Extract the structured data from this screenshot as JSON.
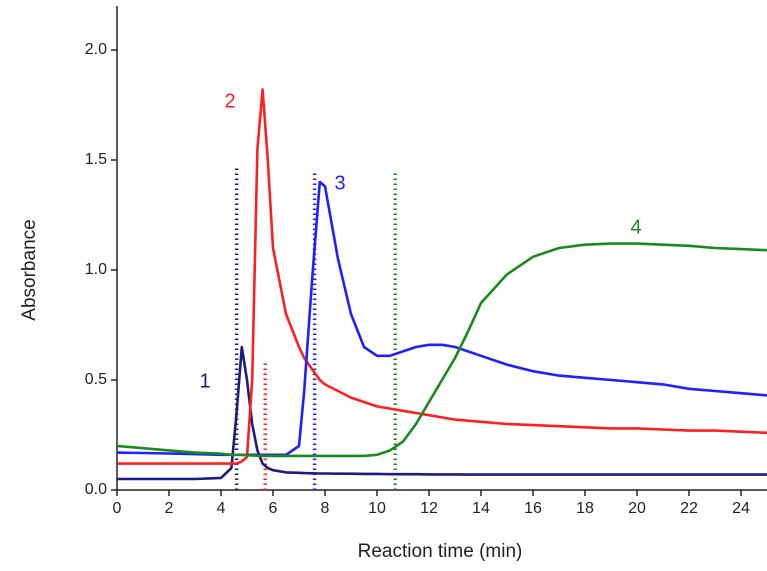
{
  "chart_data": {
    "type": "line",
    "xlabel": "Reaction time (min)",
    "ylabel": "Absorbance",
    "x": [
      0,
      1,
      2,
      3,
      4,
      4.4,
      4.6,
      4.8,
      5.0,
      5.2,
      5.4,
      5.6,
      5.8,
      6,
      6.5,
      7,
      7.2,
      7.5,
      7.8,
      8,
      8.5,
      9,
      9.5,
      10,
      10.5,
      11,
      11.5,
      12,
      12.5,
      13,
      13.5,
      14,
      15,
      16,
      17,
      18,
      19,
      20,
      21,
      22,
      23,
      24,
      25
    ],
    "series": [
      {
        "name": "1",
        "color": "#1c1c7e",
        "values": [
          0.05,
          0.05,
          0.05,
          0.05,
          0.055,
          0.1,
          0.35,
          0.65,
          0.5,
          0.3,
          0.18,
          0.12,
          0.1,
          0.09,
          0.08,
          0.078,
          0.077,
          0.076,
          0.075,
          0.075,
          0.074,
          0.074,
          0.073,
          0.073,
          0.072,
          0.072,
          0.072,
          0.071,
          0.071,
          0.071,
          0.07,
          0.07,
          0.07,
          0.07,
          0.07,
          0.07,
          0.07,
          0.07,
          0.07,
          0.07,
          0.07,
          0.07,
          0.07
        ]
      },
      {
        "name": "2",
        "color": "#ff1f1f",
        "values": [
          0.12,
          0.12,
          0.12,
          0.12,
          0.12,
          0.12,
          0.12,
          0.13,
          0.15,
          0.5,
          1.55,
          1.82,
          1.5,
          1.1,
          0.8,
          0.65,
          0.6,
          0.55,
          0.5,
          0.48,
          0.45,
          0.42,
          0.4,
          0.38,
          0.37,
          0.36,
          0.35,
          0.34,
          0.33,
          0.32,
          0.315,
          0.31,
          0.3,
          0.295,
          0.29,
          0.285,
          0.28,
          0.28,
          0.275,
          0.27,
          0.27,
          0.265,
          0.26
        ]
      },
      {
        "name": "3",
        "color": "#1f1fff",
        "values": [
          0.17,
          0.168,
          0.166,
          0.163,
          0.16,
          0.16,
          0.16,
          0.16,
          0.16,
          0.16,
          0.16,
          0.16,
          0.16,
          0.16,
          0.16,
          0.2,
          0.45,
          0.95,
          1.4,
          1.38,
          1.05,
          0.8,
          0.65,
          0.61,
          0.61,
          0.63,
          0.65,
          0.66,
          0.66,
          0.65,
          0.63,
          0.61,
          0.57,
          0.54,
          0.52,
          0.51,
          0.5,
          0.49,
          0.48,
          0.46,
          0.45,
          0.44,
          0.43
        ]
      },
      {
        "name": "4",
        "color": "#1a8a1a",
        "values": [
          0.2,
          0.19,
          0.18,
          0.17,
          0.165,
          0.16,
          0.16,
          0.16,
          0.158,
          0.157,
          0.156,
          0.155,
          0.155,
          0.155,
          0.155,
          0.155,
          0.155,
          0.155,
          0.155,
          0.155,
          0.155,
          0.155,
          0.155,
          0.16,
          0.18,
          0.22,
          0.3,
          0.4,
          0.5,
          0.6,
          0.72,
          0.85,
          0.98,
          1.06,
          1.1,
          1.115,
          1.12,
          1.12,
          1.115,
          1.11,
          1.1,
          1.095,
          1.09
        ]
      }
    ],
    "reference_lines": [
      {
        "x": 4.6,
        "top": 1.47,
        "color": "#1c1c7e"
      },
      {
        "x": 5.7,
        "top": 0.58,
        "color": "#ff1f1f"
      },
      {
        "x": 7.6,
        "top": 1.45,
        "color": "#1f1fff"
      },
      {
        "x": 10.7,
        "top": 1.45,
        "color": "#1a8a1a"
      }
    ],
    "xlim": [
      0,
      25
    ],
    "ylim": [
      0,
      2.2
    ],
    "xticks": [
      0,
      2,
      4,
      6,
      8,
      10,
      12,
      14,
      16,
      18,
      20,
      22,
      24
    ],
    "yticks": [
      {
        "value": 0,
        "label": "0.0"
      },
      0.5,
      {
        "value": 1,
        "label": "1.0"
      },
      1.5,
      {
        "value": 2,
        "label": "2.0"
      }
    ]
  }
}
